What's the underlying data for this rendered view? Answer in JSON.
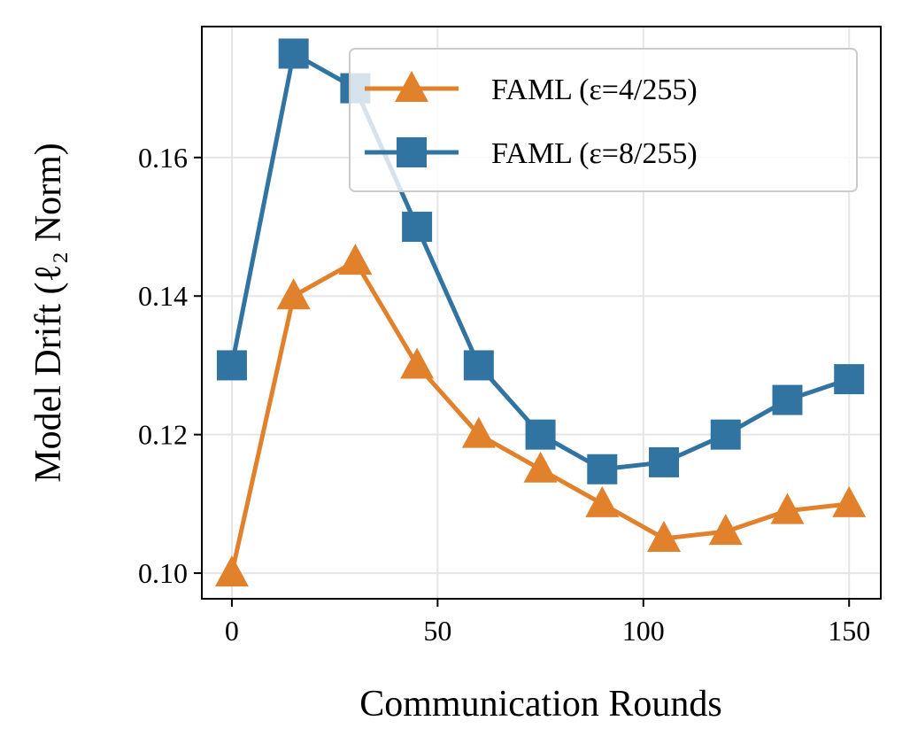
{
  "chart_data": {
    "type": "line",
    "title": "",
    "xlabel": "Communication Rounds",
    "ylabel": "Model Drift (ℓ₂ Norm)",
    "xlim": [
      -7.3,
      157.7
    ],
    "ylim": [
      0.0963,
      0.1789
    ],
    "xticks": [
      0,
      50,
      100,
      150
    ],
    "xtick_labels": [
      "0",
      "50",
      "100",
      "150"
    ],
    "yticks": [
      0.1,
      0.12,
      0.14,
      0.16
    ],
    "ytick_labels": [
      "0.10",
      "0.12",
      "0.14",
      "0.16"
    ],
    "grid": true,
    "legend_position": "upper-right",
    "x": [
      0,
      15,
      30,
      45,
      60,
      75,
      90,
      105,
      120,
      135,
      150
    ],
    "series": [
      {
        "name": "FAML (ε=4/255)",
        "marker": "triangle",
        "color": "#e1812c",
        "values": [
          0.1,
          0.14,
          0.145,
          0.13,
          0.12,
          0.115,
          0.11,
          0.105,
          0.106,
          0.109,
          0.11
        ]
      },
      {
        "name": "FAML (ε=8/255)",
        "marker": "square",
        "color": "#3274a1",
        "values": [
          0.13,
          0.175,
          0.17,
          0.15,
          0.13,
          0.12,
          0.115,
          0.116,
          0.12,
          0.125,
          0.128
        ]
      }
    ]
  }
}
